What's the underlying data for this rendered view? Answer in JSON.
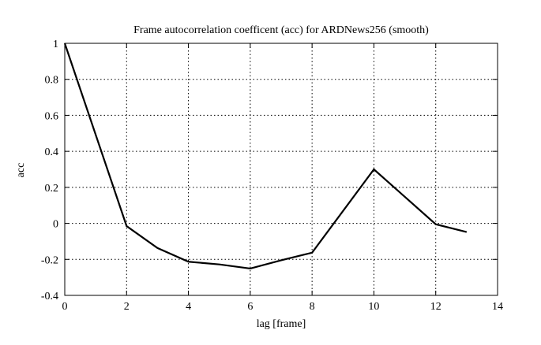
{
  "chart_data": {
    "type": "line",
    "title": "Frame autocorrelation coefficent (acc) for ARDNews256 (smooth)",
    "xlabel": "lag [frame]",
    "ylabel": "acc",
    "xlim": [
      0,
      14
    ],
    "ylim": [
      -0.4,
      1
    ],
    "xticks": [
      0,
      2,
      4,
      6,
      8,
      10,
      12,
      14
    ],
    "yticks": [
      -0.4,
      -0.2,
      0,
      0.2,
      0.4,
      0.6,
      0.8,
      1
    ],
    "grid": true,
    "grid_style": "dotted",
    "series": [
      {
        "color": "#000000",
        "x": [
          0,
          2,
          3,
          4,
          5,
          6,
          7,
          8,
          10,
          12,
          13
        ],
        "y": [
          1.0,
          -0.015,
          -0.137,
          -0.213,
          -0.228,
          -0.251,
          -0.205,
          -0.163,
          0.3,
          -0.005,
          -0.048
        ]
      }
    ]
  }
}
